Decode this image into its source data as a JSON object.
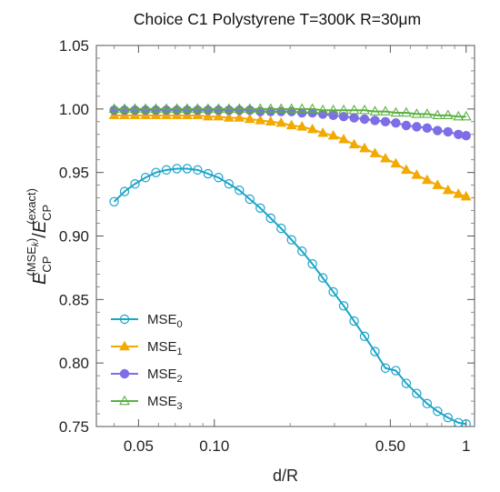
{
  "chart_data": {
    "type": "line",
    "title": "Choice C1 Polystyrene T=300K R=30μm",
    "xlabel": "d/R",
    "ylabel": {
      "base": "E",
      "sub": "CP",
      "sup_numerator": "(MSE",
      "sup_numerator_k": "k",
      "sup_numerator_close": ")",
      "sup_denominator": "(exact)",
      "slash": "/"
    },
    "x_scale": "log",
    "xlim": [
      0.034,
      1.08
    ],
    "ylim": [
      0.75,
      1.05
    ],
    "x_ticks": [
      {
        "value": 0.05,
        "label": "0.05"
      },
      {
        "value": 0.1,
        "label": "0.10"
      },
      {
        "value": 0.5,
        "label": "0.50"
      },
      {
        "value": 1.0,
        "label": "1"
      }
    ],
    "y_ticks": [
      {
        "value": 0.75,
        "label": "0.75"
      },
      {
        "value": 0.8,
        "label": "0.80"
      },
      {
        "value": 0.85,
        "label": "0.85"
      },
      {
        "value": 0.9,
        "label": "0.90"
      },
      {
        "value": 0.95,
        "label": "0.95"
      },
      {
        "value": 1.0,
        "label": "1.00"
      },
      {
        "value": 1.05,
        "label": "1.05"
      }
    ],
    "grid": false,
    "legend_position": "bottom-left",
    "x": [
      0.04,
      0.044,
      0.0484,
      0.0533,
      0.0586,
      0.0645,
      0.071,
      0.078,
      0.0858,
      0.0944,
      0.1039,
      0.1143,
      0.1257,
      0.1383,
      0.1522,
      0.1674,
      0.1842,
      0.2026,
      0.2229,
      0.2452,
      0.2697,
      0.2967,
      0.3264,
      0.359,
      0.395,
      0.4345,
      0.478,
      0.5258,
      0.5784,
      0.6362,
      0.6999,
      0.7699,
      0.8469,
      0.9316,
      1.0
    ],
    "series": [
      {
        "name": "MSE",
        "name_sub": "0",
        "color": "#1aa4c8",
        "marker": "open-circle",
        "values": [
          0.927,
          0.935,
          0.941,
          0.946,
          0.95,
          0.952,
          0.953,
          0.953,
          0.952,
          0.949,
          0.946,
          0.941,
          0.936,
          0.929,
          0.922,
          0.914,
          0.906,
          0.897,
          0.888,
          0.878,
          0.867,
          0.856,
          0.845,
          0.833,
          0.821,
          0.809,
          0.796,
          0.794,
          0.784,
          0.776,
          0.768,
          0.762,
          0.757,
          0.753,
          0.752
        ]
      },
      {
        "name": "MSE",
        "name_sub": "1",
        "color": "#f2a900",
        "marker": "filled-triangle",
        "values": [
          0.995,
          0.995,
          0.995,
          0.995,
          0.995,
          0.995,
          0.995,
          0.995,
          0.995,
          0.994,
          0.994,
          0.993,
          0.993,
          0.992,
          0.991,
          0.99,
          0.989,
          0.987,
          0.986,
          0.984,
          0.981,
          0.979,
          0.976,
          0.972,
          0.969,
          0.965,
          0.961,
          0.957,
          0.952,
          0.948,
          0.944,
          0.94,
          0.936,
          0.933,
          0.931
        ]
      },
      {
        "name": "MSE",
        "name_sub": "2",
        "color": "#7d6ee8",
        "marker": "filled-circle",
        "values": [
          0.999,
          0.999,
          0.999,
          0.999,
          0.999,
          0.999,
          0.999,
          0.999,
          0.999,
          0.999,
          0.999,
          0.999,
          0.999,
          0.999,
          0.998,
          0.998,
          0.998,
          0.998,
          0.997,
          0.997,
          0.996,
          0.995,
          0.994,
          0.993,
          0.992,
          0.991,
          0.99,
          0.989,
          0.987,
          0.986,
          0.985,
          0.983,
          0.982,
          0.98,
          0.979
        ]
      },
      {
        "name": "MSE",
        "name_sub": "3",
        "color": "#5bb040",
        "marker": "open-triangle",
        "values": [
          1.0,
          1.0,
          1.0,
          1.0,
          1.0,
          1.0,
          1.0,
          1.0,
          1.0,
          1.0,
          1.0,
          1.0,
          1.0,
          1.0,
          1.0,
          1.0,
          1.0,
          1.0,
          1.0,
          1.0,
          0.999,
          0.999,
          0.999,
          0.999,
          0.999,
          0.998,
          0.998,
          0.997,
          0.997,
          0.996,
          0.996,
          0.995,
          0.995,
          0.994,
          0.994
        ]
      }
    ]
  }
}
